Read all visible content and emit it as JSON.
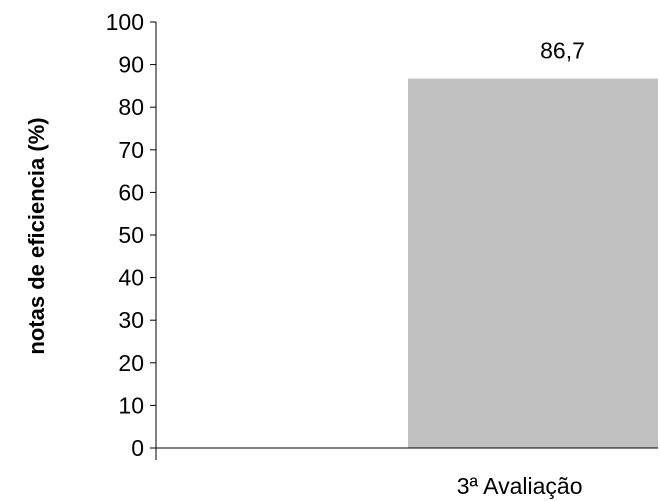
{
  "chart_data": {
    "type": "bar",
    "categories": [
      "",
      "3ª Avaliação"
    ],
    "values": [
      0,
      86.7
    ],
    "data_labels": [
      "",
      "86,7"
    ],
    "ylabel": "notas de eficiencia (%)",
    "ylim": [
      0,
      100
    ],
    "yticks": [
      "0",
      "10",
      "20",
      "30",
      "40",
      "50",
      "60",
      "70",
      "80",
      "90",
      "100"
    ],
    "grid": false,
    "bar_color": "#c0c0c0"
  }
}
